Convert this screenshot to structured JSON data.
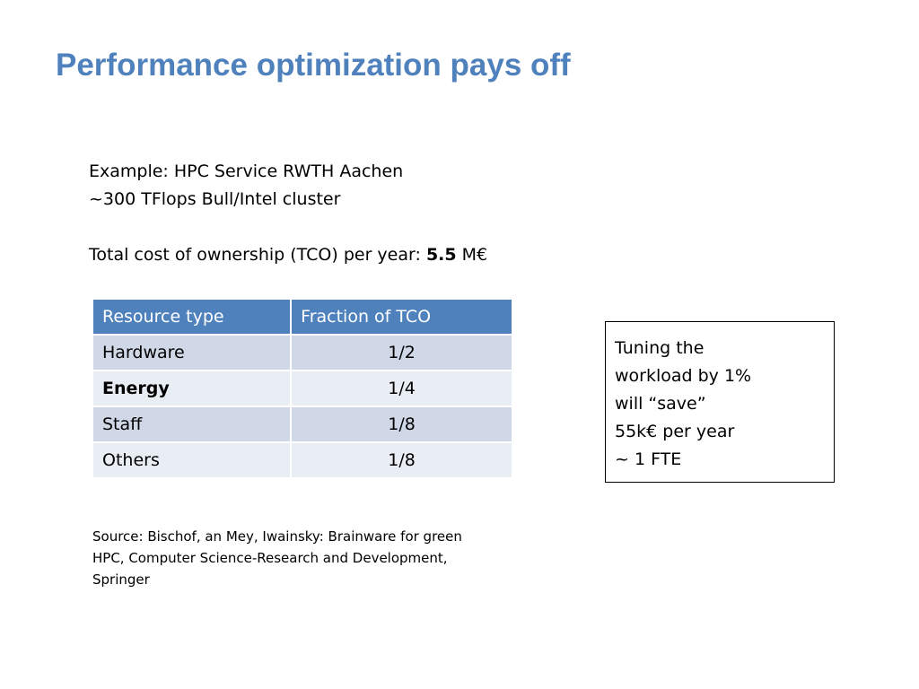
{
  "slide": {
    "title": "Performance optimization pays off",
    "title_color": "#4f81bd"
  },
  "intro": {
    "line1": "Example: HPC Service RWTH Aachen",
    "line2": "~300 TFlops Bull/Intel cluster",
    "tco_prefix": "Total cost of ownership (TCO) per year: ",
    "tco_value": "5.5",
    "tco_unit": " M€"
  },
  "table": {
    "header_color": "#4f81bd",
    "headers": {
      "resource": "Resource type",
      "fraction": "Fraction of TCO"
    },
    "rows": [
      {
        "resource": "Hardware",
        "fraction": "1/2"
      },
      {
        "resource": "Energy",
        "fraction": "1/4"
      },
      {
        "resource": "Staff",
        "fraction": "1/8"
      },
      {
        "resource": "Others",
        "fraction": "1/8"
      }
    ]
  },
  "callout": {
    "lines": [
      "Tuning the",
      "workload by 1%",
      "will “save”",
      "55k€ per year",
      "~ 1 FTE"
    ]
  },
  "source": {
    "lines": [
      "Source: Bischof, an Mey, Iwainsky: Brainware for green",
      "HPC,  Computer Science-Research and Development,",
      "Springer"
    ]
  }
}
